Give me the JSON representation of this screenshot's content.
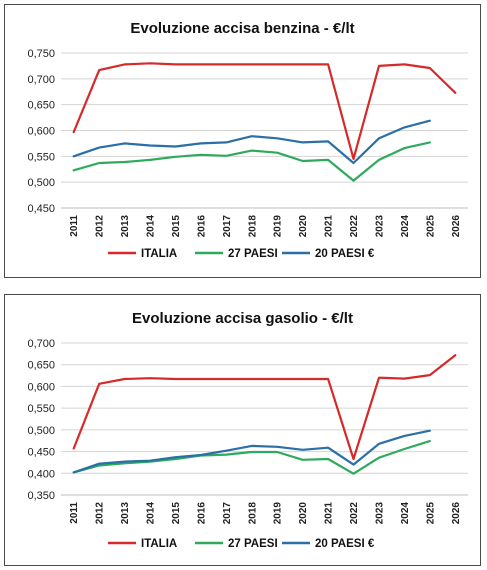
{
  "chart_data": [
    {
      "type": "line",
      "title": "Evoluzione accisa benzina - €/lt",
      "xlabel": "",
      "ylabel": "",
      "categories": [
        "2011",
        "2012",
        "2013",
        "2014",
        "2015",
        "2016",
        "2017",
        "2018",
        "2019",
        "2020",
        "2021",
        "2022",
        "2023",
        "2024",
        "2025",
        "2026"
      ],
      "ylim": [
        0.45,
        0.75
      ],
      "yticks": [
        "0,450",
        "0,500",
        "0,550",
        "0,600",
        "0,650",
        "0,700",
        "0,750"
      ],
      "grid": true,
      "legend_position": "bottom",
      "series": [
        {
          "name": "ITALIA",
          "color": "#d62a2a",
          "values": [
            0.597,
            0.717,
            0.728,
            0.73,
            0.728,
            0.728,
            0.728,
            0.728,
            0.728,
            0.728,
            0.728,
            0.545,
            0.725,
            0.728,
            0.721,
            0.673
          ]
        },
        {
          "name": "27 PAESI",
          "color": "#2eaa5c",
          "values": [
            0.523,
            0.537,
            0.539,
            0.543,
            0.549,
            0.553,
            0.551,
            0.561,
            0.557,
            0.541,
            0.543,
            0.503,
            0.543,
            0.566,
            0.577,
            null
          ]
        },
        {
          "name": "20 PAESI €",
          "color": "#2a6fa8",
          "values": [
            0.55,
            0.567,
            0.575,
            0.571,
            0.569,
            0.575,
            0.577,
            0.589,
            0.585,
            0.577,
            0.579,
            0.537,
            0.585,
            0.606,
            0.619,
            null
          ]
        }
      ]
    },
    {
      "type": "line",
      "title": "Evoluzione accisa gasolio - €/lt",
      "xlabel": "",
      "ylabel": "",
      "categories": [
        "2011",
        "2012",
        "2013",
        "2014",
        "2015",
        "2016",
        "2017",
        "2018",
        "2019",
        "2020",
        "2021",
        "2022",
        "2023",
        "2024",
        "2025",
        "2026"
      ],
      "ylim": [
        0.35,
        0.7
      ],
      "yticks": [
        "0,350",
        "0,400",
        "0,450",
        "0,500",
        "0,550",
        "0,600",
        "0,650",
        "0,700"
      ],
      "grid": true,
      "legend_position": "bottom",
      "series": [
        {
          "name": "ITALIA",
          "color": "#d62a2a",
          "values": [
            0.457,
            0.606,
            0.617,
            0.619,
            0.617,
            0.617,
            0.617,
            0.617,
            0.617,
            0.617,
            0.617,
            0.433,
            0.62,
            0.618,
            0.626,
            0.672
          ]
        },
        {
          "name": "27 PAESI",
          "color": "#2eaa5c",
          "values": [
            0.402,
            0.418,
            0.423,
            0.427,
            0.433,
            0.441,
            0.443,
            0.449,
            0.449,
            0.431,
            0.433,
            0.399,
            0.436,
            0.456,
            0.474,
            null
          ]
        },
        {
          "name": "20 PAESI €",
          "color": "#2a6fa8",
          "values": [
            0.402,
            0.422,
            0.427,
            0.429,
            0.437,
            0.442,
            0.452,
            0.463,
            0.461,
            0.454,
            0.459,
            0.42,
            0.468,
            0.486,
            0.498,
            null
          ]
        }
      ]
    }
  ]
}
